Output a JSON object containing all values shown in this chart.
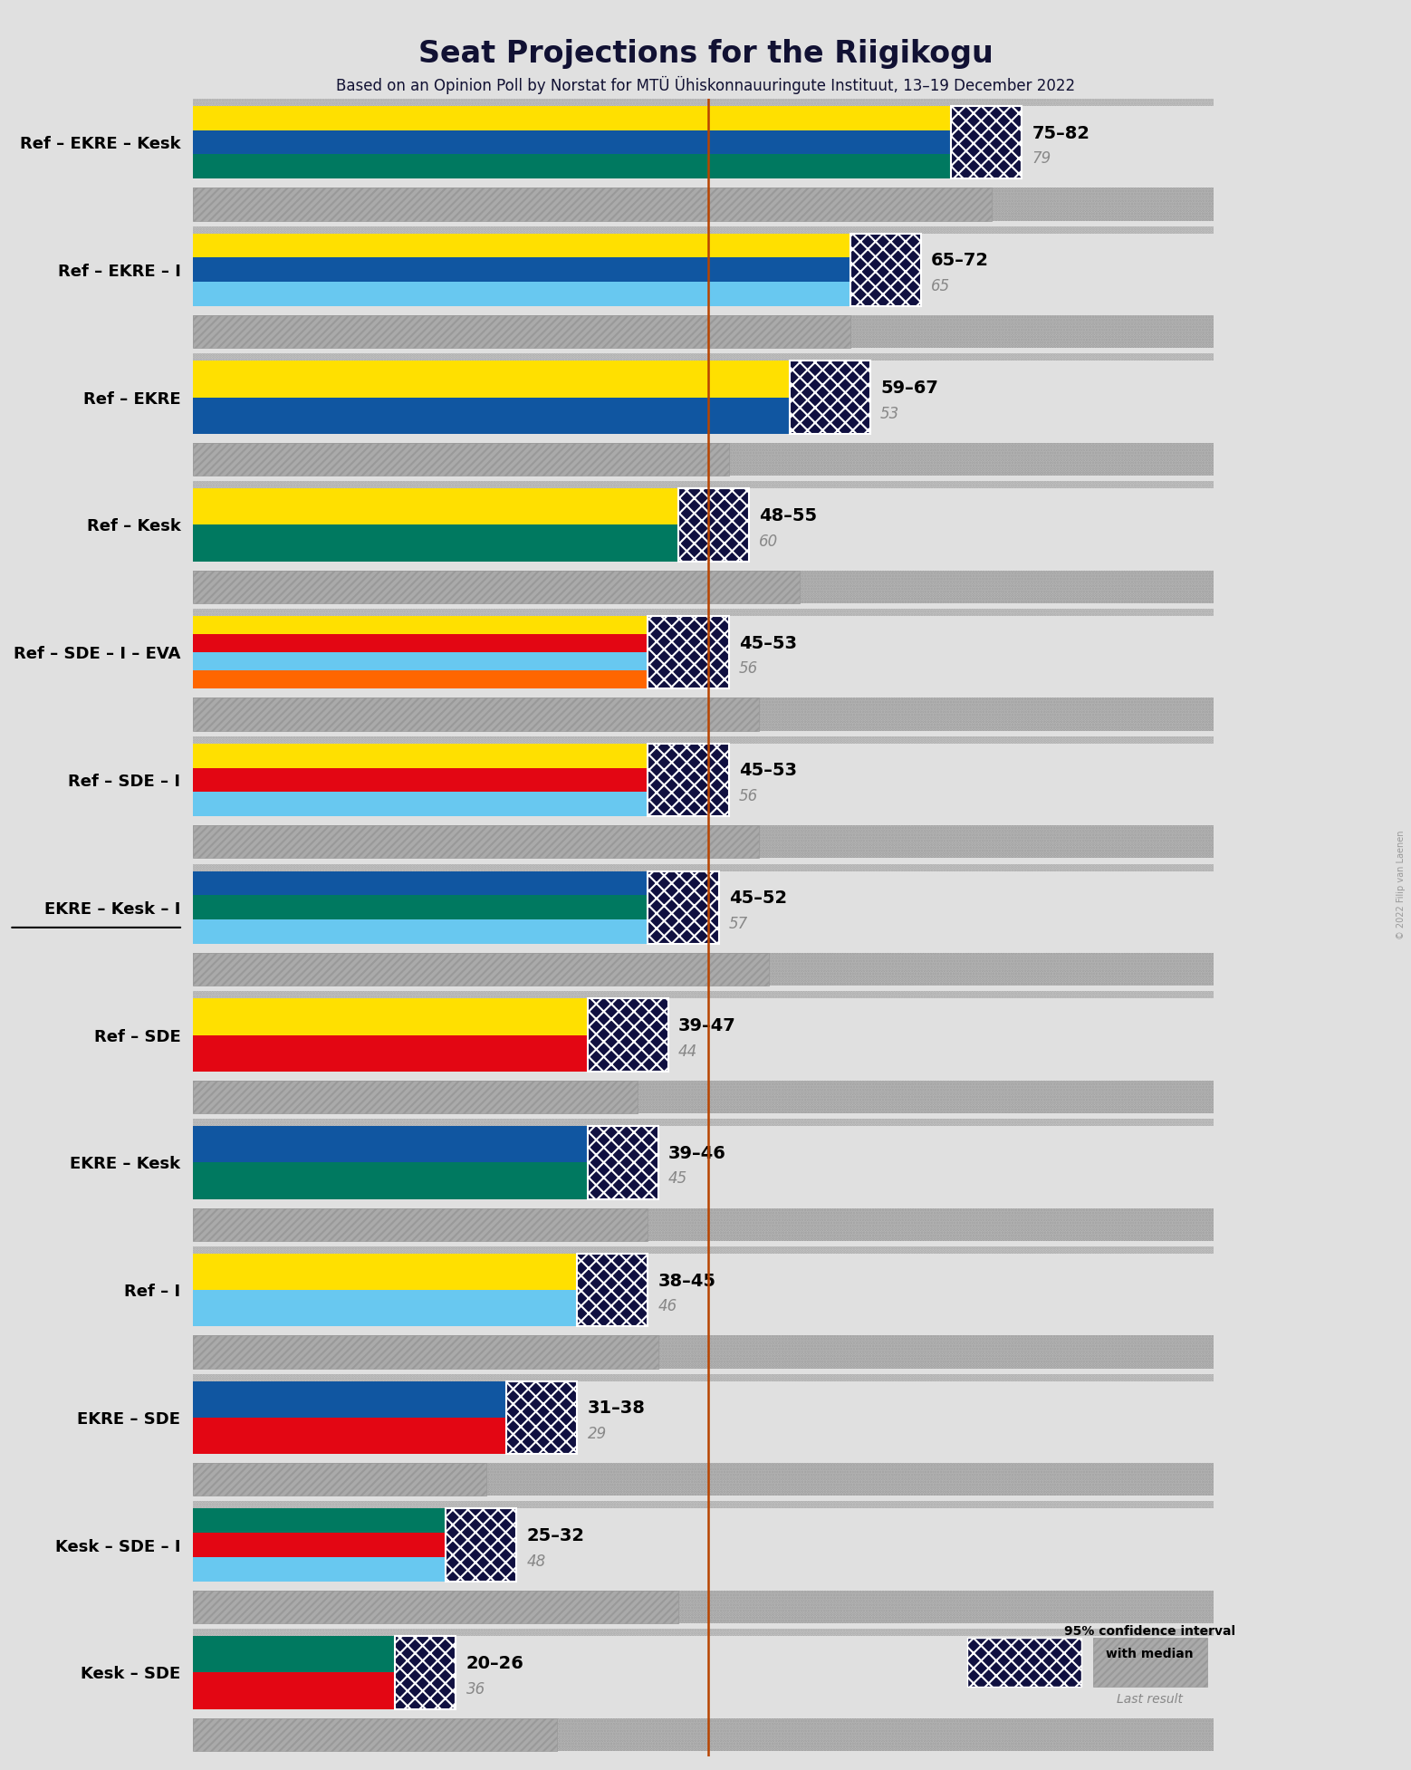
{
  "title": "Seat Projections for the Riigikogu",
  "subtitle": "Based on an Opinion Poll by Norstat for MTÜ Ühiskonnauuringute Instituut, 13–19 December 2022",
  "copyright": "© 2022 Filip van Laenen",
  "majority_line": 51,
  "background_color": "#e0e0e0",
  "coalitions": [
    {
      "name": "Ref – EKRE – Kesk",
      "underline": false,
      "ci_low": 75,
      "ci_high": 82,
      "median": 79,
      "last_result": 79,
      "segments": [
        {
          "label": "Ref",
          "color": "#FFE000"
        },
        {
          "label": "EKRE",
          "color": "#1056A1"
        },
        {
          "label": "Kesk",
          "color": "#007960"
        }
      ]
    },
    {
      "name": "Ref – EKRE – I",
      "underline": false,
      "ci_low": 65,
      "ci_high": 72,
      "median": 65,
      "last_result": 65,
      "segments": [
        {
          "label": "Ref",
          "color": "#FFE000"
        },
        {
          "label": "EKRE",
          "color": "#1056A1"
        },
        {
          "label": "I",
          "color": "#68C8F0"
        }
      ]
    },
    {
      "name": "Ref – EKRE",
      "underline": false,
      "ci_low": 59,
      "ci_high": 67,
      "median": 53,
      "last_result": 53,
      "segments": [
        {
          "label": "Ref",
          "color": "#FFE000"
        },
        {
          "label": "EKRE",
          "color": "#1056A1"
        }
      ]
    },
    {
      "name": "Ref – Kesk",
      "underline": false,
      "ci_low": 48,
      "ci_high": 55,
      "median": 60,
      "last_result": 60,
      "segments": [
        {
          "label": "Ref",
          "color": "#FFE000"
        },
        {
          "label": "Kesk",
          "color": "#007960"
        }
      ]
    },
    {
      "name": "Ref – SDE – I – EVA",
      "underline": false,
      "ci_low": 45,
      "ci_high": 53,
      "median": 56,
      "last_result": 56,
      "segments": [
        {
          "label": "Ref",
          "color": "#FFE000"
        },
        {
          "label": "SDE",
          "color": "#E30613"
        },
        {
          "label": "I",
          "color": "#68C8F0"
        },
        {
          "label": "EVA",
          "color": "#FF6600"
        }
      ]
    },
    {
      "name": "Ref – SDE – I",
      "underline": false,
      "ci_low": 45,
      "ci_high": 53,
      "median": 56,
      "last_result": 56,
      "segments": [
        {
          "label": "Ref",
          "color": "#FFE000"
        },
        {
          "label": "SDE",
          "color": "#E30613"
        },
        {
          "label": "I",
          "color": "#68C8F0"
        }
      ]
    },
    {
      "name": "EKRE – Kesk – I",
      "underline": true,
      "ci_low": 45,
      "ci_high": 52,
      "median": 57,
      "last_result": 57,
      "segments": [
        {
          "label": "EKRE",
          "color": "#1056A1"
        },
        {
          "label": "Kesk",
          "color": "#007960"
        },
        {
          "label": "I",
          "color": "#68C8F0"
        }
      ]
    },
    {
      "name": "Ref – SDE",
      "underline": false,
      "ci_low": 39,
      "ci_high": 47,
      "median": 44,
      "last_result": 44,
      "segments": [
        {
          "label": "Ref",
          "color": "#FFE000"
        },
        {
          "label": "SDE",
          "color": "#E30613"
        }
      ]
    },
    {
      "name": "EKRE – Kesk",
      "underline": false,
      "ci_low": 39,
      "ci_high": 46,
      "median": 45,
      "last_result": 45,
      "segments": [
        {
          "label": "EKRE",
          "color": "#1056A1"
        },
        {
          "label": "Kesk",
          "color": "#007960"
        }
      ]
    },
    {
      "name": "Ref – I",
      "underline": false,
      "ci_low": 38,
      "ci_high": 45,
      "median": 46,
      "last_result": 46,
      "segments": [
        {
          "label": "Ref",
          "color": "#FFE000"
        },
        {
          "label": "I",
          "color": "#68C8F0"
        }
      ]
    },
    {
      "name": "EKRE – SDE",
      "underline": false,
      "ci_low": 31,
      "ci_high": 38,
      "median": 29,
      "last_result": 29,
      "segments": [
        {
          "label": "EKRE",
          "color": "#1056A1"
        },
        {
          "label": "SDE",
          "color": "#E30613"
        }
      ]
    },
    {
      "name": "Kesk – SDE – I",
      "underline": false,
      "ci_low": 25,
      "ci_high": 32,
      "median": 48,
      "last_result": 48,
      "segments": [
        {
          "label": "Kesk",
          "color": "#007960"
        },
        {
          "label": "SDE",
          "color": "#E30613"
        },
        {
          "label": "I",
          "color": "#68C8F0"
        }
      ]
    },
    {
      "name": "Kesk – SDE",
      "underline": false,
      "ci_low": 20,
      "ci_high": 26,
      "median": 36,
      "last_result": 36,
      "segments": [
        {
          "label": "Kesk",
          "color": "#007960"
        },
        {
          "label": "SDE",
          "color": "#E30613"
        }
      ]
    }
  ],
  "x_max": 101,
  "majority_line_color": "#b84400",
  "ci_hatch_color": "#101040",
  "last_bar_color": "#aaaaaa",
  "last_hatch_color": "#888888"
}
